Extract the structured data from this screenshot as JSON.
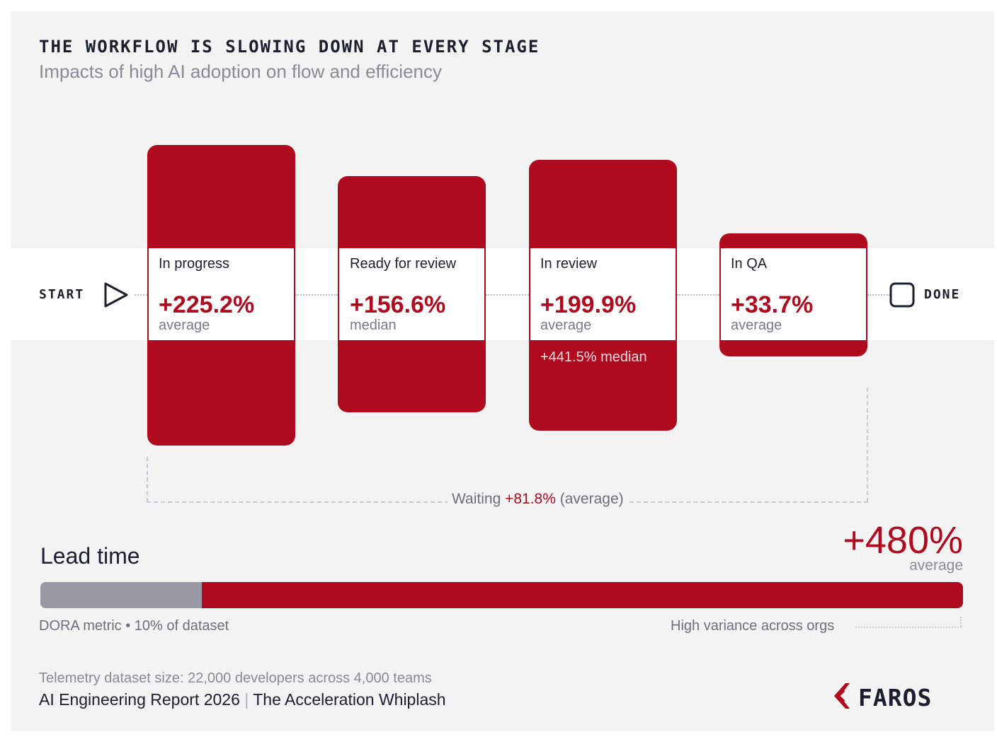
{
  "header": {
    "title": "THE WORKFLOW IS SLOWING DOWN AT EVERY STAGE",
    "subtitle": "Impacts of high AI adoption on flow and efficiency"
  },
  "flow": {
    "start_label": "START",
    "done_label": "DONE",
    "start_icon": "play-icon",
    "done_icon": "square-icon"
  },
  "stages": [
    {
      "name": "In progress",
      "value": "+225.2%",
      "stat": "average",
      "extra": ""
    },
    {
      "name": "Ready for review",
      "value": "+156.6%",
      "stat": "median",
      "extra": ""
    },
    {
      "name": "In review",
      "value": "+199.9%",
      "stat": "average",
      "extra": "+441.5% median"
    },
    {
      "name": "In QA",
      "value": "+33.7%",
      "stat": "average",
      "extra": ""
    }
  ],
  "waiting": {
    "prefix": "Waiting",
    "value": "+81.8%",
    "suffix": "(average)"
  },
  "lead_time": {
    "title": "Lead time",
    "value": "+480%",
    "stat": "average",
    "dora_fraction": 0.175,
    "dora_note": "DORA metric • 10% of dataset",
    "variance_note": "High variance across orgs"
  },
  "footer": {
    "dataset": "Telemetry dataset size: 22,000 developers across 4,000 teams",
    "report": "AI Engineering Report 2026",
    "separator": "|",
    "report_subtitle": "The Acceleration Whiplash",
    "logo_text": "FAROS",
    "logo_icon": "faros-chevron-icon"
  },
  "colors": {
    "accent": "#b00a1e",
    "dora_gray": "#9a98a4",
    "text_dark": "#1b1e2c",
    "text_muted": "#8a8a94",
    "panel_bg": "#f3f3f3"
  }
}
